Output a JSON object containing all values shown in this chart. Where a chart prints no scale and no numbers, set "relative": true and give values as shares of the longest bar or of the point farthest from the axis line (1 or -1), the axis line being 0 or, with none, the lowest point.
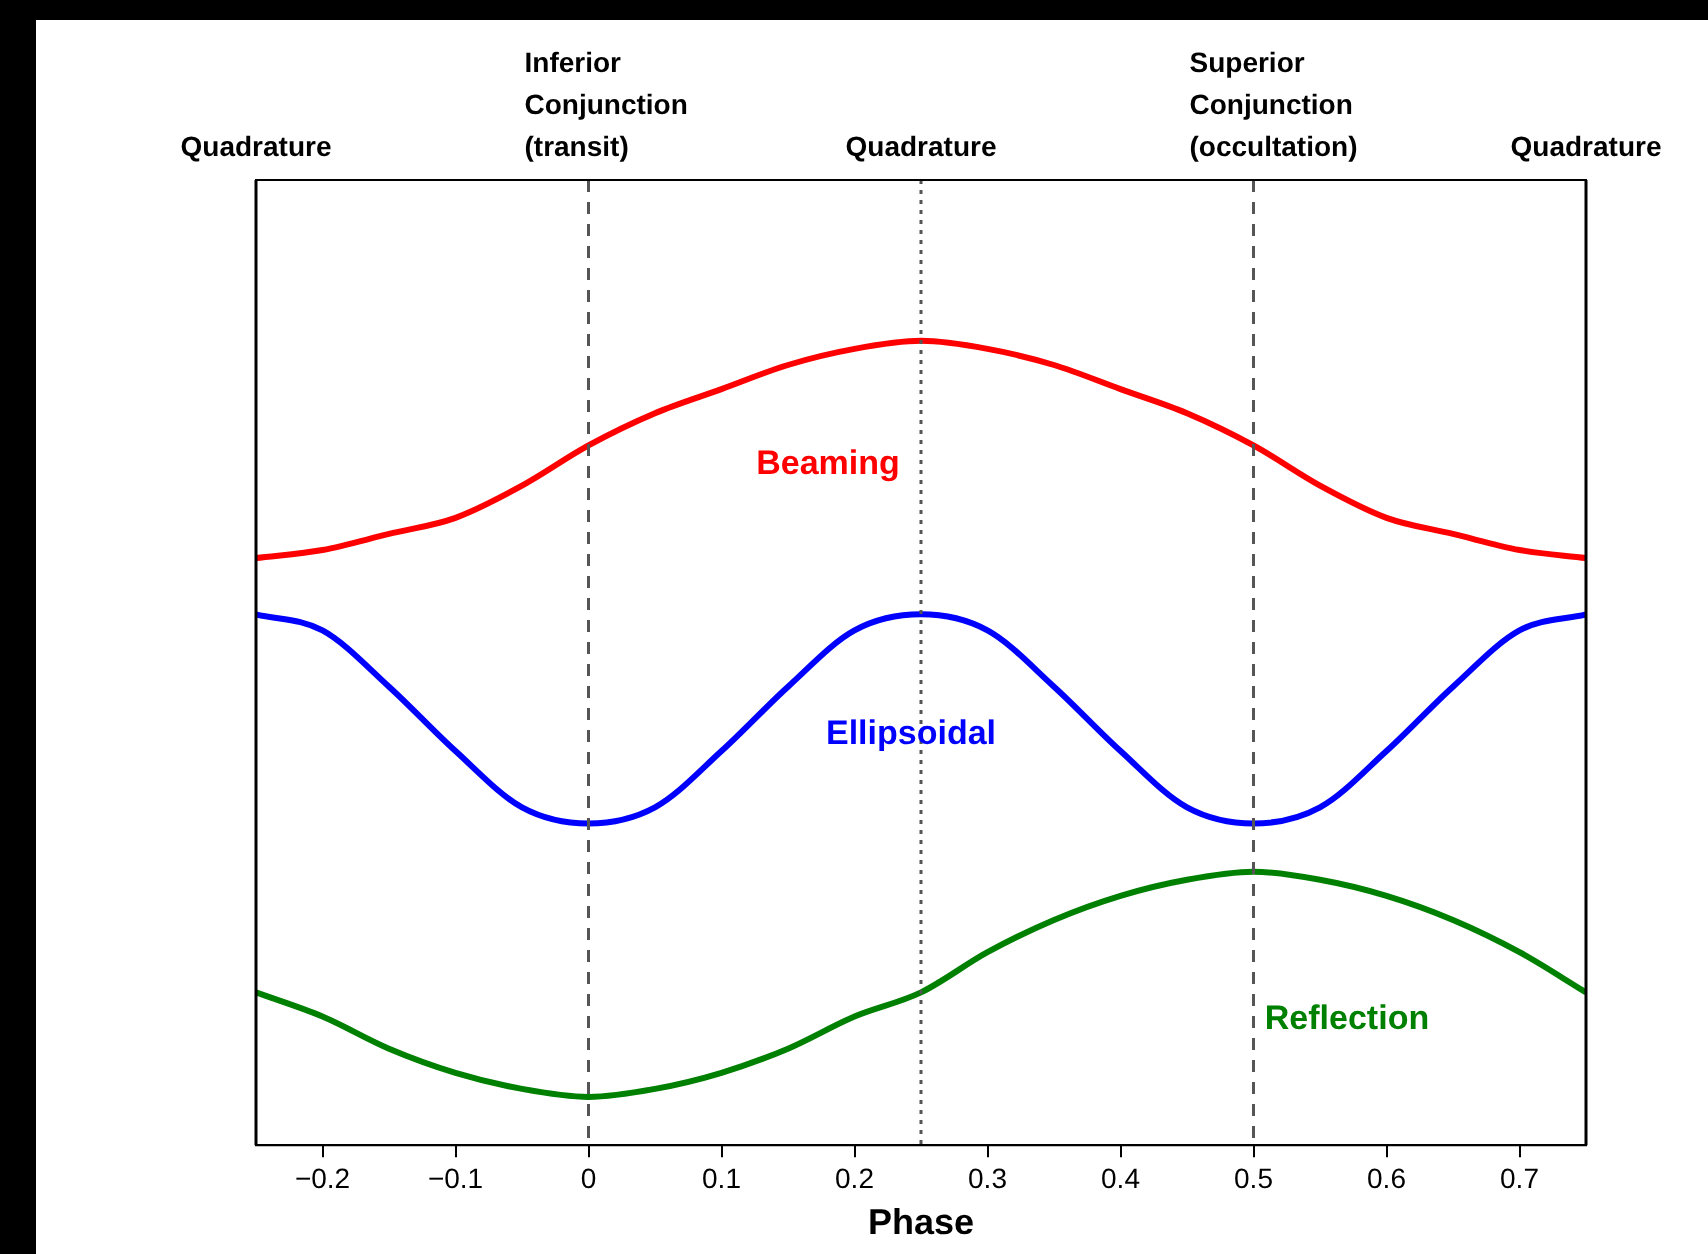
{
  "chart_data": {
    "type": "line",
    "relative": true,
    "xlabel": "Phase",
    "legend": false,
    "grid": false,
    "marker": "none",
    "line_style": "solid",
    "x": [
      -0.25,
      -0.2,
      -0.15,
      -0.1,
      -0.05,
      0,
      0.05,
      0.1,
      0.15,
      0.2,
      0.25,
      0.3,
      0.35,
      0.4,
      0.45,
      0.5,
      0.55,
      0.6,
      0.65,
      0.7,
      0.75
    ],
    "xlim": [
      -0.25,
      0.75
    ],
    "xticks": [
      {
        "value": -0.2,
        "label": "−0.2"
      },
      {
        "value": -0.1,
        "label": "−0.1"
      },
      0,
      0.1,
      0.2,
      0.3,
      0.4,
      0.5,
      0.6,
      0.7
    ],
    "series": [
      {
        "name": "Beaming",
        "color": "#ff0000",
        "values": [
          0.73,
          0.74,
          0.76,
          0.78,
          0.82,
          0.87,
          0.91,
          0.94,
          0.97,
          0.99,
          1,
          0.99,
          0.97,
          0.94,
          0.91,
          0.87,
          0.82,
          0.78,
          0.76,
          0.74,
          0.73
        ]
      },
      {
        "name": "Ellipsoidal",
        "color": "#0000ff",
        "values": [
          0.66,
          0.64,
          0.57,
          0.49,
          0.42,
          0.4,
          0.42,
          0.49,
          0.57,
          0.64,
          0.66,
          0.64,
          0.57,
          0.49,
          0.42,
          0.4,
          0.42,
          0.49,
          0.57,
          0.64,
          0.66
        ]
      },
      {
        "name": "Reflection",
        "color": "#008000",
        "values": [
          0.19,
          0.16,
          0.12,
          0.09,
          0.07,
          0.06,
          0.07,
          0.09,
          0.12,
          0.16,
          0.19,
          0.24,
          0.28,
          0.31,
          0.33,
          0.34,
          0.33,
          0.31,
          0.28,
          0.24,
          0.19
        ]
      }
    ],
    "ref_lines": [
      {
        "axis": "x",
        "value": -0.25,
        "label": "Quadrature",
        "color": "#000000",
        "line_style": "solid"
      },
      {
        "axis": "x",
        "value": 0,
        "label": "Inferior Conjunction (transit)",
        "color": "#555555",
        "line_style": "dashed"
      },
      {
        "axis": "x",
        "value": 0.25,
        "label": "Quadrature",
        "color": "#555555",
        "line_style": "dotted"
      },
      {
        "axis": "x",
        "value": 0.5,
        "label": "Superior Conjunction (occultation)",
        "color": "#555555",
        "line_style": "dashed"
      },
      {
        "axis": "x",
        "value": 0.75,
        "label": "Quadrature",
        "color": "#000000",
        "line_style": "solid"
      }
    ]
  }
}
